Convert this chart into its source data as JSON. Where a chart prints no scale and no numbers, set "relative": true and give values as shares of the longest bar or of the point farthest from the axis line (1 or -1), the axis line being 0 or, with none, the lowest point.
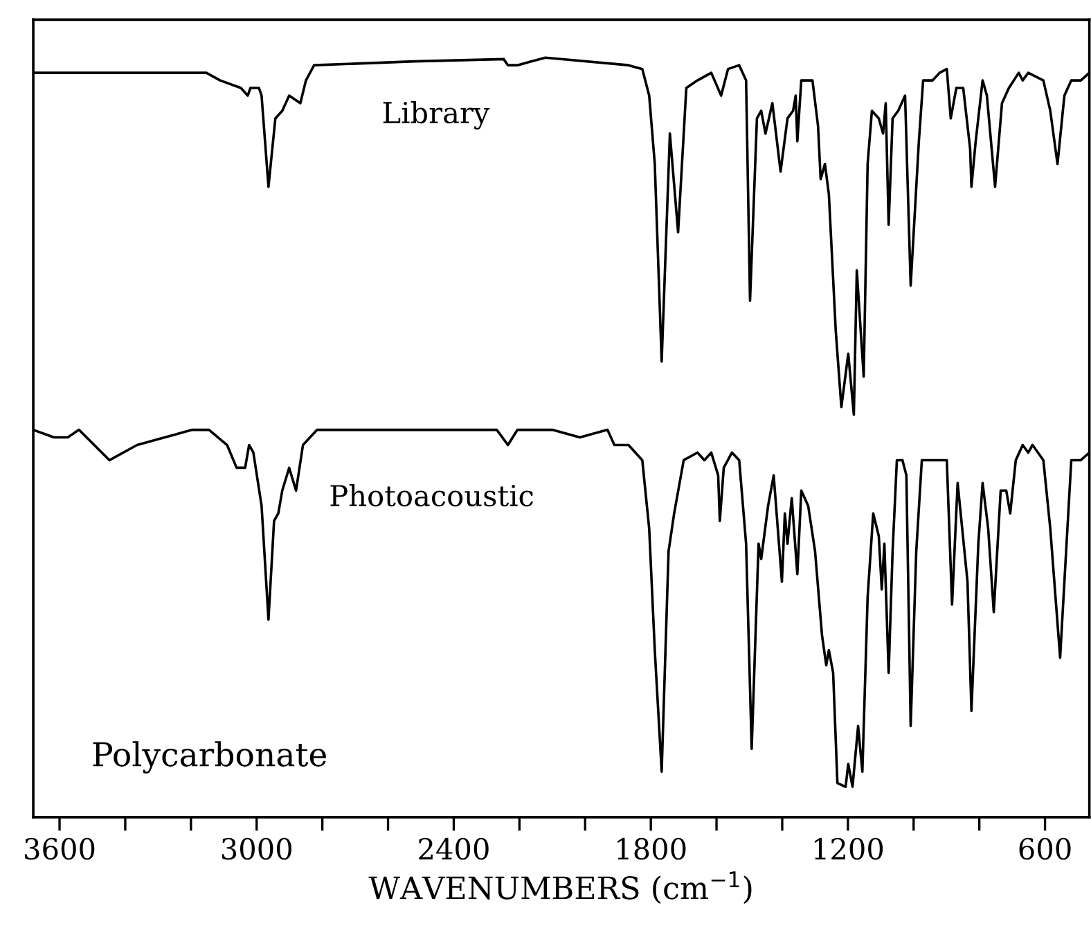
{
  "chart_data": {
    "type": "line",
    "relative": true,
    "xlabel": "WAVENUMBERS (cm$^{−1}$)",
    "xlim": [
      3680,
      465
    ],
    "xticks": [
      3600,
      {
        "value": 3400,
        "label": null
      },
      {
        "value": 3200,
        "label": null
      },
      3000,
      {
        "value": 2800,
        "label": null
      },
      {
        "value": 2600,
        "label": null
      },
      2400,
      {
        "value": 2200,
        "label": null
      },
      {
        "value": 2000,
        "label": null
      },
      1800,
      {
        "value": 1600,
        "label": null
      },
      {
        "value": 1400,
        "label": null
      },
      1200,
      {
        "value": 1000,
        "label": null
      },
      {
        "value": 800,
        "label": null
      },
      600
    ],
    "grid": false,
    "legend": false,
    "marker": "none",
    "line_style": "solid",
    "annotations": [
      "Polycarbonate"
    ],
    "series": [
      {
        "name": "Library",
        "color": "#000000",
        "x": [
          3680,
          3153,
          3111,
          3048,
          3027,
          3019,
          2993,
          2985,
          2964,
          2943,
          2922,
          2901,
          2867,
          2850,
          2825,
          2521,
          2248,
          2235,
          2206,
          2121,
          1868,
          1826,
          1805,
          1788,
          1767,
          1742,
          1717,
          1692,
          1658,
          1616,
          1586,
          1565,
          1531,
          1510,
          1498,
          1477,
          1464,
          1451,
          1430,
          1405,
          1384,
          1367,
          1359,
          1354,
          1342,
          1308,
          1291,
          1283,
          1270,
          1258,
          1237,
          1220,
          1199,
          1182,
          1173,
          1152,
          1140,
          1127,
          1106,
          1093,
          1085,
          1076,
          1064,
          1047,
          1026,
          1009,
          984,
          971,
          942,
          921,
          899,
          887,
          870,
          849,
          828,
          824,
          811,
          790,
          777,
          752,
          731,
          710,
          680,
          668,
          651,
          605,
          584,
          562,
          541,
          520,
          491,
          465
        ],
        "values": [
          0.98,
          0.98,
          0.97,
          0.96,
          0.95,
          0.96,
          0.96,
          0.95,
          0.83,
          0.92,
          0.93,
          0.95,
          0.94,
          0.97,
          0.99,
          0.995,
          0.998,
          0.99,
          0.99,
          1.0,
          0.99,
          0.985,
          0.95,
          0.86,
          0.6,
          0.9,
          0.77,
          0.96,
          0.97,
          0.98,
          0.95,
          0.985,
          0.99,
          0.97,
          0.68,
          0.92,
          0.93,
          0.9,
          0.94,
          0.85,
          0.92,
          0.93,
          0.95,
          0.89,
          0.97,
          0.97,
          0.91,
          0.84,
          0.86,
          0.82,
          0.64,
          0.54,
          0.61,
          0.53,
          0.72,
          0.58,
          0.86,
          0.93,
          0.92,
          0.9,
          0.94,
          0.78,
          0.92,
          0.93,
          0.95,
          0.7,
          0.89,
          0.97,
          0.97,
          0.98,
          0.985,
          0.92,
          0.96,
          0.96,
          0.88,
          0.83,
          0.89,
          0.97,
          0.95,
          0.83,
          0.94,
          0.96,
          0.98,
          0.97,
          0.98,
          0.97,
          0.93,
          0.86,
          0.95,
          0.97,
          0.97,
          0.98
        ]
      },
      {
        "name": "Photoacoustic",
        "color": "#000000",
        "x": [
          3680,
          3617,
          3575,
          3541,
          3448,
          3364,
          3280,
          3196,
          3145,
          3090,
          3061,
          3035,
          3023,
          3010,
          2985,
          2964,
          2947,
          2934,
          2922,
          2901,
          2880,
          2859,
          2816,
          2521,
          2353,
          2269,
          2235,
          2206,
          2100,
          2016,
          1932,
          1911,
          1898,
          1868,
          1826,
          1805,
          1788,
          1767,
          1746,
          1729,
          1700,
          1658,
          1637,
          1616,
          1595,
          1590,
          1578,
          1553,
          1531,
          1510,
          1493,
          1472,
          1464,
          1443,
          1426,
          1401,
          1392,
          1384,
          1371,
          1354,
          1342,
          1321,
          1300,
          1279,
          1266,
          1258,
          1245,
          1232,
          1207,
          1199,
          1186,
          1169,
          1156,
          1140,
          1123,
          1106,
          1097,
          1089,
          1076,
          1064,
          1051,
          1034,
          1022,
          1009,
          992,
          975,
          954,
          942,
          925,
          912,
          899,
          883,
          866,
          836,
          824,
          803,
          790,
          773,
          756,
          735,
          718,
          706,
          689,
          668,
          651,
          638,
          605,
          584,
          554,
          541,
          520,
          508,
          491,
          465
        ],
        "values": [
          0.51,
          0.5,
          0.5,
          0.51,
          0.47,
          0.49,
          0.5,
          0.51,
          0.51,
          0.49,
          0.46,
          0.46,
          0.49,
          0.48,
          0.41,
          0.26,
          0.39,
          0.4,
          0.43,
          0.46,
          0.43,
          0.49,
          0.51,
          0.51,
          0.51,
          0.51,
          0.49,
          0.51,
          0.51,
          0.5,
          0.51,
          0.49,
          0.49,
          0.49,
          0.47,
          0.38,
          0.22,
          0.06,
          0.35,
          0.4,
          0.47,
          0.48,
          0.47,
          0.48,
          0.45,
          0.39,
          0.46,
          0.48,
          0.47,
          0.36,
          0.09,
          0.36,
          0.34,
          0.41,
          0.45,
          0.31,
          0.4,
          0.36,
          0.42,
          0.32,
          0.43,
          0.41,
          0.35,
          0.24,
          0.2,
          0.22,
          0.19,
          0.045,
          0.04,
          0.07,
          0.04,
          0.12,
          0.06,
          0.29,
          0.4,
          0.37,
          0.3,
          0.36,
          0.19,
          0.35,
          0.47,
          0.47,
          0.45,
          0.12,
          0.35,
          0.47,
          0.47,
          0.47,
          0.47,
          0.47,
          0.47,
          0.28,
          0.44,
          0.31,
          0.14,
          0.36,
          0.44,
          0.38,
          0.27,
          0.43,
          0.43,
          0.4,
          0.47,
          0.49,
          0.48,
          0.49,
          0.47,
          0.38,
          0.21,
          0.31,
          0.47,
          0.47,
          0.47,
          0.48
        ]
      }
    ]
  }
}
